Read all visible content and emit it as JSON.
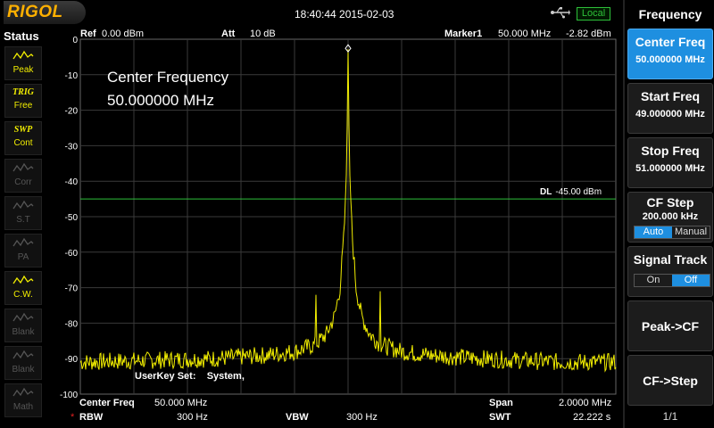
{
  "brand": "RIGOL",
  "datetime": "18:40:44 2015-02-03",
  "remote_status": "Local",
  "status_panel": {
    "title": "Status",
    "items": [
      {
        "icon": "peak-icon",
        "label": "Peak",
        "active": true
      },
      {
        "icon": "TRIG",
        "label": "Free",
        "active": true
      },
      {
        "icon": "SWP",
        "label": "Cont",
        "active": true
      },
      {
        "icon": "corr-icon",
        "label": "Corr",
        "active": false
      },
      {
        "icon": "source-tracking-icon",
        "label": "S.T",
        "active": false
      },
      {
        "icon": "preamp-icon",
        "label": "PA",
        "active": false
      },
      {
        "icon": "cw-icon",
        "label": "C.W.",
        "active": true
      },
      {
        "icon": "trace-icon",
        "label": "Blank",
        "active": false
      },
      {
        "icon": "trace-icon",
        "label": "Blank",
        "active": false
      },
      {
        "icon": "math-icon",
        "label": "Math",
        "active": false
      }
    ]
  },
  "header": {
    "ref_label": "Ref",
    "ref_value": "0.00 dBm",
    "att_label": "Att",
    "att_value": "10 dB",
    "marker_label": "Marker1",
    "marker_freq": "50.000 MHz",
    "marker_level": "-2.82 dBm"
  },
  "overlay": {
    "line1": "Center Frequency",
    "line2": "50.000000 MHz",
    "userkey": "UserKey Set:    System,"
  },
  "display_line": {
    "label": "DL",
    "value": "-45.00 dBm",
    "level": -45,
    "color": "#2ec03a"
  },
  "chart_data": {
    "type": "line",
    "y_ticks": [
      "0",
      "-10",
      "-20",
      "-30",
      "-40",
      "-50",
      "-60",
      "-70",
      "-80",
      "-90",
      "-100"
    ],
    "ylim": [
      -100,
      0
    ],
    "xlim_mhz": [
      49.0,
      51.0
    ],
    "trace_color": "#f2ee00",
    "noise_floor_dbm": -91,
    "series": [
      {
        "x_mhz": [
          49.0,
          49.5,
          49.7,
          49.8,
          49.88,
          49.92,
          49.95,
          49.97,
          49.985,
          49.995,
          50.0,
          50.005,
          50.015,
          50.03,
          50.05,
          50.08,
          50.12,
          50.2,
          50.3,
          50.5,
          50.8,
          51.0
        ],
        "y_dbm": [
          -91,
          -90,
          -89,
          -88,
          -86,
          -83,
          -78,
          -70,
          -55,
          -35,
          -2.82,
          -35,
          -55,
          -70,
          -78,
          -83,
          -86,
          -88,
          -89,
          -90,
          -91,
          -91
        ]
      }
    ],
    "spurs": [
      {
        "x_mhz": 49.88,
        "y_dbm": -72
      },
      {
        "x_mhz": 50.12,
        "y_dbm": -71
      }
    ],
    "marker": {
      "x_mhz": 50.0,
      "y_dbm": -2.82
    }
  },
  "footer": {
    "center_label": "Center Freq",
    "center_value": "50.000 MHz",
    "span_label": "Span",
    "span_value": "2.0000 MHz",
    "rbw_label": "RBW",
    "rbw_value": "300 Hz",
    "vbw_label": "VBW",
    "vbw_value": "300 Hz",
    "swt_label": "SWT",
    "swt_value": "22.222 s",
    "asterisk": "*"
  },
  "menu": {
    "title": "Frequency",
    "center_freq": {
      "label": "Center Freq",
      "value": "50.000000 MHz"
    },
    "start_freq": {
      "label": "Start Freq",
      "value": "49.000000 MHz"
    },
    "stop_freq": {
      "label": "Stop Freq",
      "value": "51.000000 MHz"
    },
    "cf_step": {
      "label": "CF Step",
      "value": "200.000 kHz",
      "auto": "Auto",
      "manual": "Manual"
    },
    "signal_track": {
      "label": "Signal Track",
      "on": "On",
      "off": "Off"
    },
    "peak_cf": "Peak->CF",
    "cf_step_btn": "CF->Step",
    "page": "1/1"
  }
}
